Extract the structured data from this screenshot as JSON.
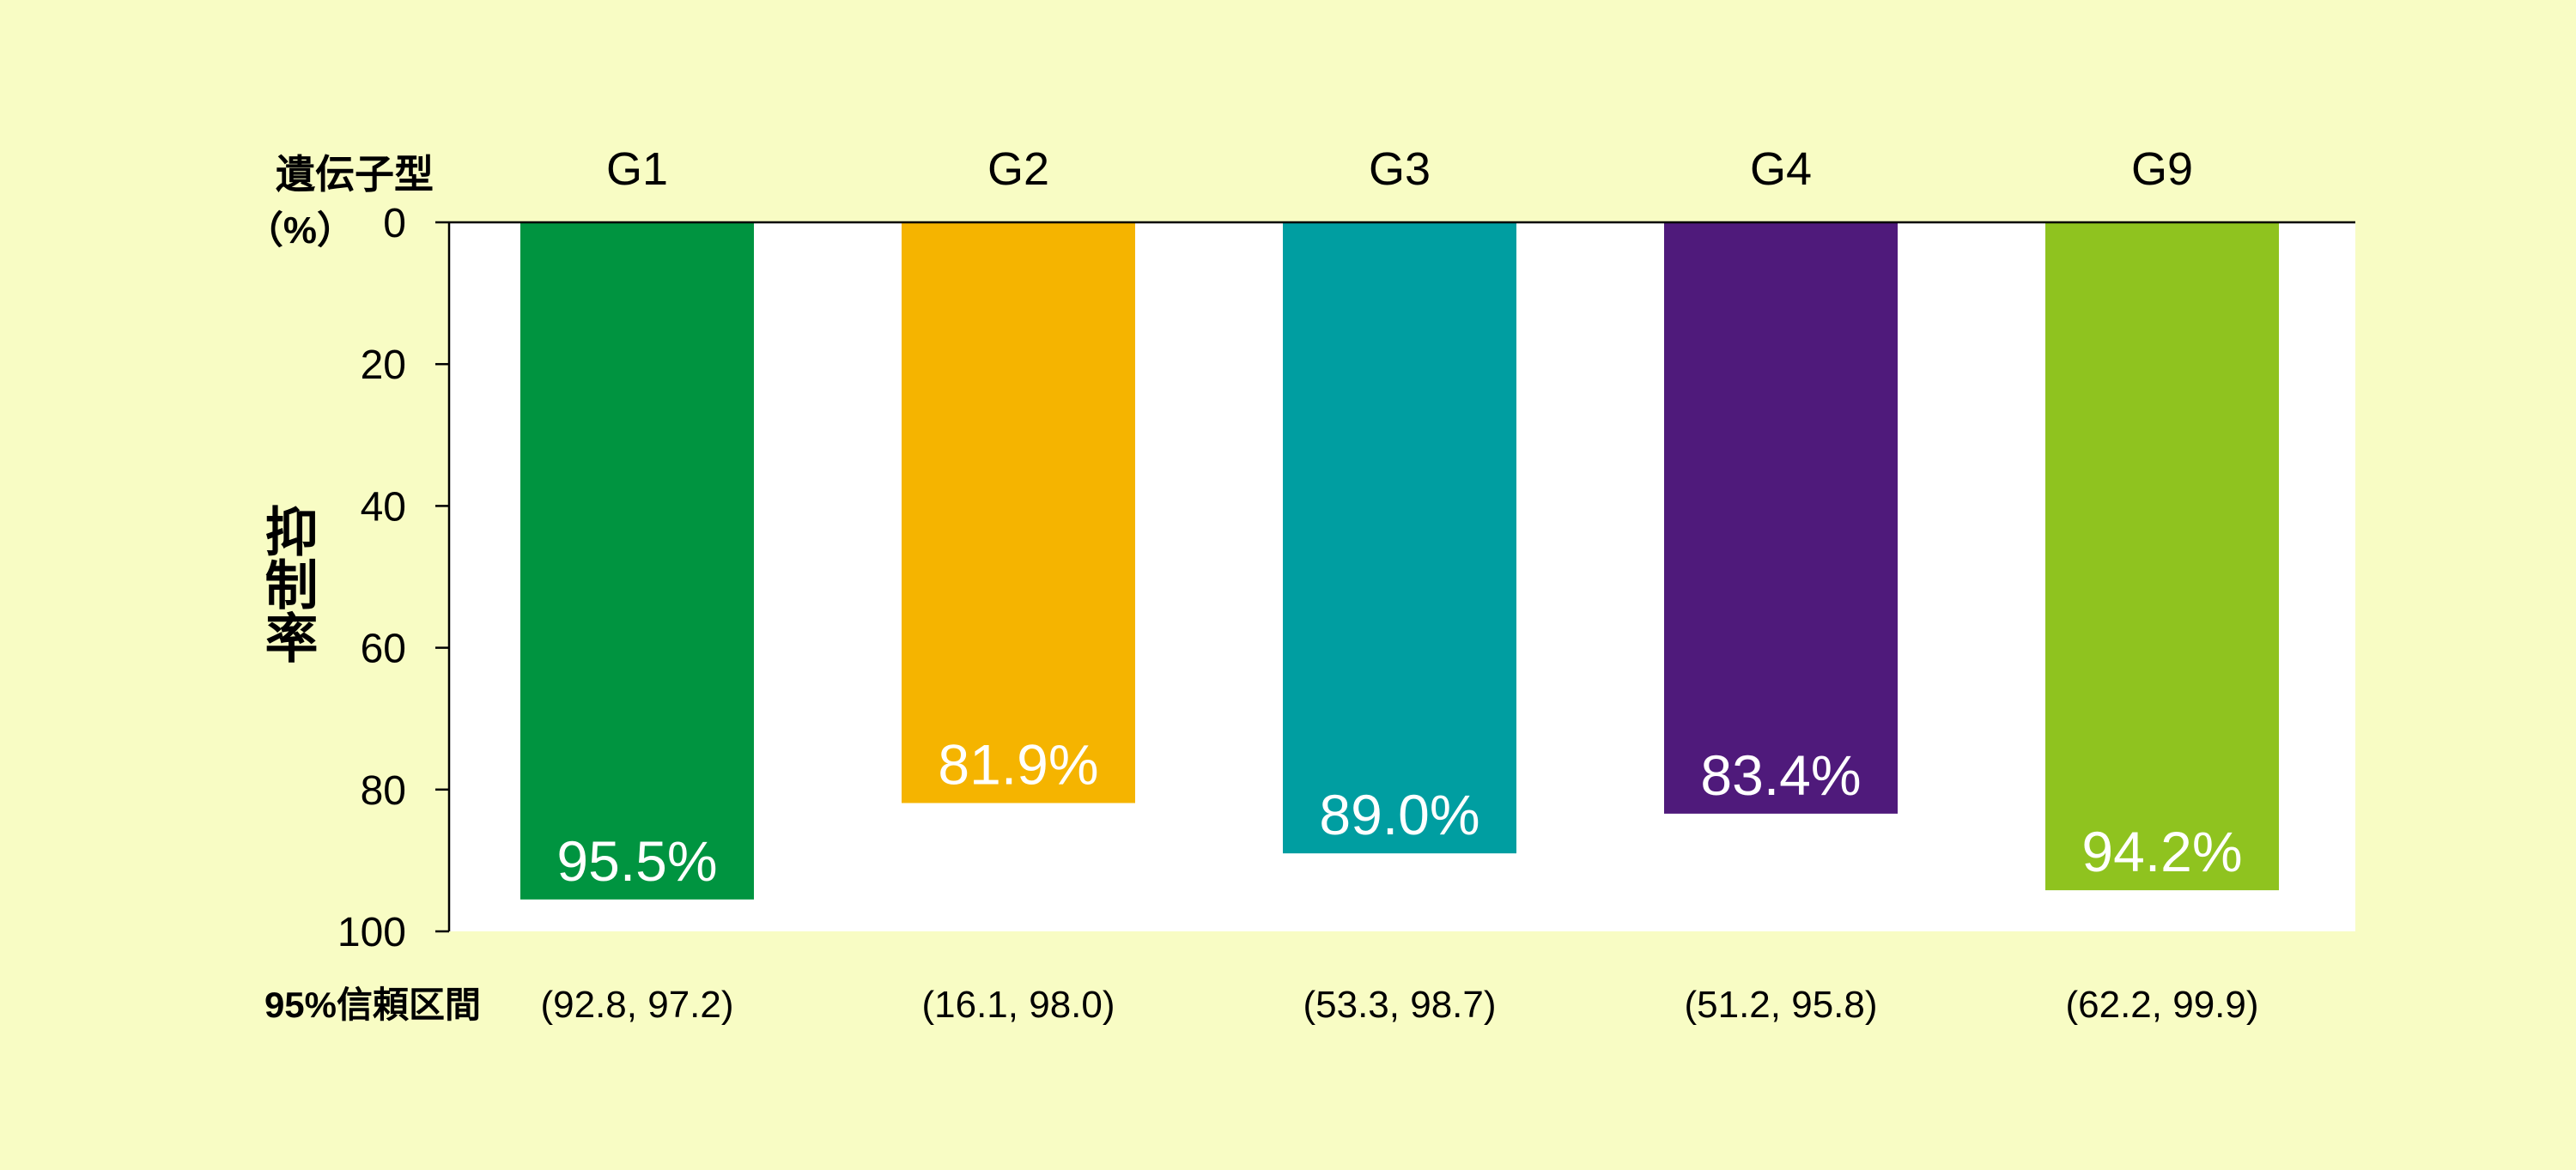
{
  "chart_data": {
    "type": "bar",
    "header_label": "遺伝子型",
    "unit_label": "（%）",
    "ylabel": "抑制率",
    "ci_label": "95%信頼区間",
    "categories": [
      "G1",
      "G2",
      "G3",
      "G4",
      "G9"
    ],
    "values": [
      95.5,
      81.9,
      89.0,
      83.4,
      94.2
    ],
    "value_labels": [
      "95.5%",
      "81.9%",
      "89.0%",
      "83.4%",
      "94.2%"
    ],
    "confidence_intervals": [
      "(92.8, 97.2)",
      "(16.1, 98.0)",
      "(53.3, 98.7)",
      "(51.2, 95.8)",
      "(62.2, 99.9)"
    ],
    "colors": [
      "#009440",
      "#f5b400",
      "#009ea1",
      "#4f1a7b",
      "#8fc31f"
    ],
    "ylim": [
      0,
      100
    ],
    "y_direction": "downward",
    "yticks": [
      0,
      20,
      40,
      60,
      80,
      100
    ],
    "ytick_labels": [
      "0",
      "20",
      "40",
      "60",
      "80",
      "100"
    ],
    "grid": false,
    "background_color": "#f8fcc4",
    "plot_background_color": "#ffffff"
  }
}
